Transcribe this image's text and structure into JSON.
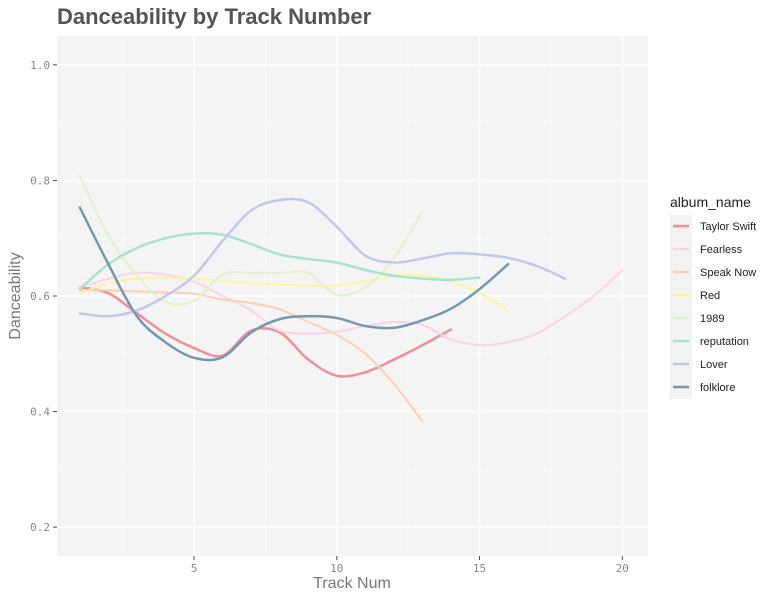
{
  "chart_data": {
    "type": "line",
    "title": "Danceability by Track Number",
    "xlabel": "Track Num",
    "ylabel": "Danceability",
    "xlim": [
      0.2,
      20.9
    ],
    "ylim": [
      0.15,
      1.05
    ],
    "xticks": [
      5,
      10,
      15,
      20
    ],
    "yticks": [
      0.2,
      0.4,
      0.6,
      0.8,
      1.0
    ],
    "ytick_labels": [
      "0.2",
      "0.4",
      "0.6",
      "0.8",
      "1.0"
    ],
    "xtick_labels": [
      "5",
      "10",
      "15",
      "20"
    ],
    "grid": true,
    "legend_position": "right",
    "legend_title": "album_name",
    "series": [
      {
        "name": "Taylor Swift",
        "color": "#f28e98",
        "width": 2.5,
        "x": [
          1,
          2,
          3,
          4,
          5,
          6,
          7,
          8,
          9,
          10,
          11,
          12,
          13,
          14
        ],
        "y": [
          0.615,
          0.605,
          0.57,
          0.535,
          0.51,
          0.497,
          0.54,
          0.537,
          0.49,
          0.462,
          0.468,
          0.49,
          0.515,
          0.542
        ]
      },
      {
        "name": "Fearless",
        "color": "#fcd2e8",
        "width": 2,
        "x": [
          1,
          2,
          3,
          4,
          5,
          6,
          7,
          8,
          9,
          10,
          11,
          12,
          13,
          14,
          15,
          16,
          17,
          18,
          19,
          20
        ],
        "y": [
          0.615,
          0.63,
          0.64,
          0.637,
          0.625,
          0.6,
          0.575,
          0.54,
          0.535,
          0.538,
          0.548,
          0.555,
          0.55,
          0.525,
          0.515,
          0.52,
          0.535,
          0.565,
          0.6,
          0.645
        ]
      },
      {
        "name": "Speak Now",
        "color": "#fdd0b5",
        "width": 2,
        "x": [
          1,
          2,
          3,
          4,
          5,
          6,
          7,
          8,
          9,
          10,
          11,
          12,
          13
        ],
        "y": [
          0.61,
          0.61,
          0.608,
          0.606,
          0.604,
          0.594,
          0.588,
          0.577,
          0.555,
          0.533,
          0.5,
          0.448,
          0.383
        ]
      },
      {
        "name": "Red",
        "color": "#fef49c",
        "width": 2,
        "x": [
          1,
          2,
          3,
          4,
          5,
          6,
          7,
          8,
          9,
          10,
          11,
          12,
          13,
          14,
          15,
          16
        ],
        "y": [
          0.605,
          0.622,
          0.63,
          0.632,
          0.63,
          0.626,
          0.622,
          0.62,
          0.618,
          0.618,
          0.625,
          0.635,
          0.635,
          0.625,
          0.605,
          0.575
        ]
      },
      {
        "name": "1989",
        "color": "#e1f1cb",
        "width": 2,
        "x": [
          1,
          2,
          3,
          4,
          5,
          6,
          7,
          8,
          9,
          10,
          11,
          12,
          13
        ],
        "y": [
          0.808,
          0.705,
          0.635,
          0.59,
          0.592,
          0.637,
          0.64,
          0.64,
          0.64,
          0.602,
          0.615,
          0.665,
          0.747
        ]
      },
      {
        "name": "reputation",
        "color": "#a8e3d0",
        "width": 2.5,
        "x": [
          1,
          2,
          3,
          4,
          5,
          6,
          7,
          8,
          9,
          10,
          11,
          12,
          13,
          14,
          15
        ],
        "y": [
          0.612,
          0.655,
          0.683,
          0.7,
          0.708,
          0.706,
          0.69,
          0.672,
          0.664,
          0.658,
          0.645,
          0.635,
          0.63,
          0.628,
          0.632
        ]
      },
      {
        "name": "Lover",
        "color": "#c3c8ea",
        "width": 2.5,
        "x": [
          1,
          2,
          3,
          4,
          5,
          6,
          7,
          8,
          9,
          10,
          11,
          12,
          13,
          14,
          15,
          16,
          17,
          18
        ],
        "y": [
          0.57,
          0.565,
          0.575,
          0.6,
          0.635,
          0.695,
          0.748,
          0.766,
          0.762,
          0.72,
          0.67,
          0.658,
          0.665,
          0.674,
          0.672,
          0.666,
          0.652,
          0.63
        ]
      },
      {
        "name": "folklore",
        "color": "#7499ad",
        "width": 2.5,
        "x": [
          1,
          2,
          3,
          4,
          5,
          6,
          7,
          8,
          9,
          10,
          11,
          12,
          13,
          14,
          15,
          16
        ],
        "y": [
          0.753,
          0.655,
          0.565,
          0.52,
          0.493,
          0.494,
          0.537,
          0.56,
          0.565,
          0.562,
          0.548,
          0.545,
          0.558,
          0.578,
          0.612,
          0.655
        ]
      }
    ]
  }
}
